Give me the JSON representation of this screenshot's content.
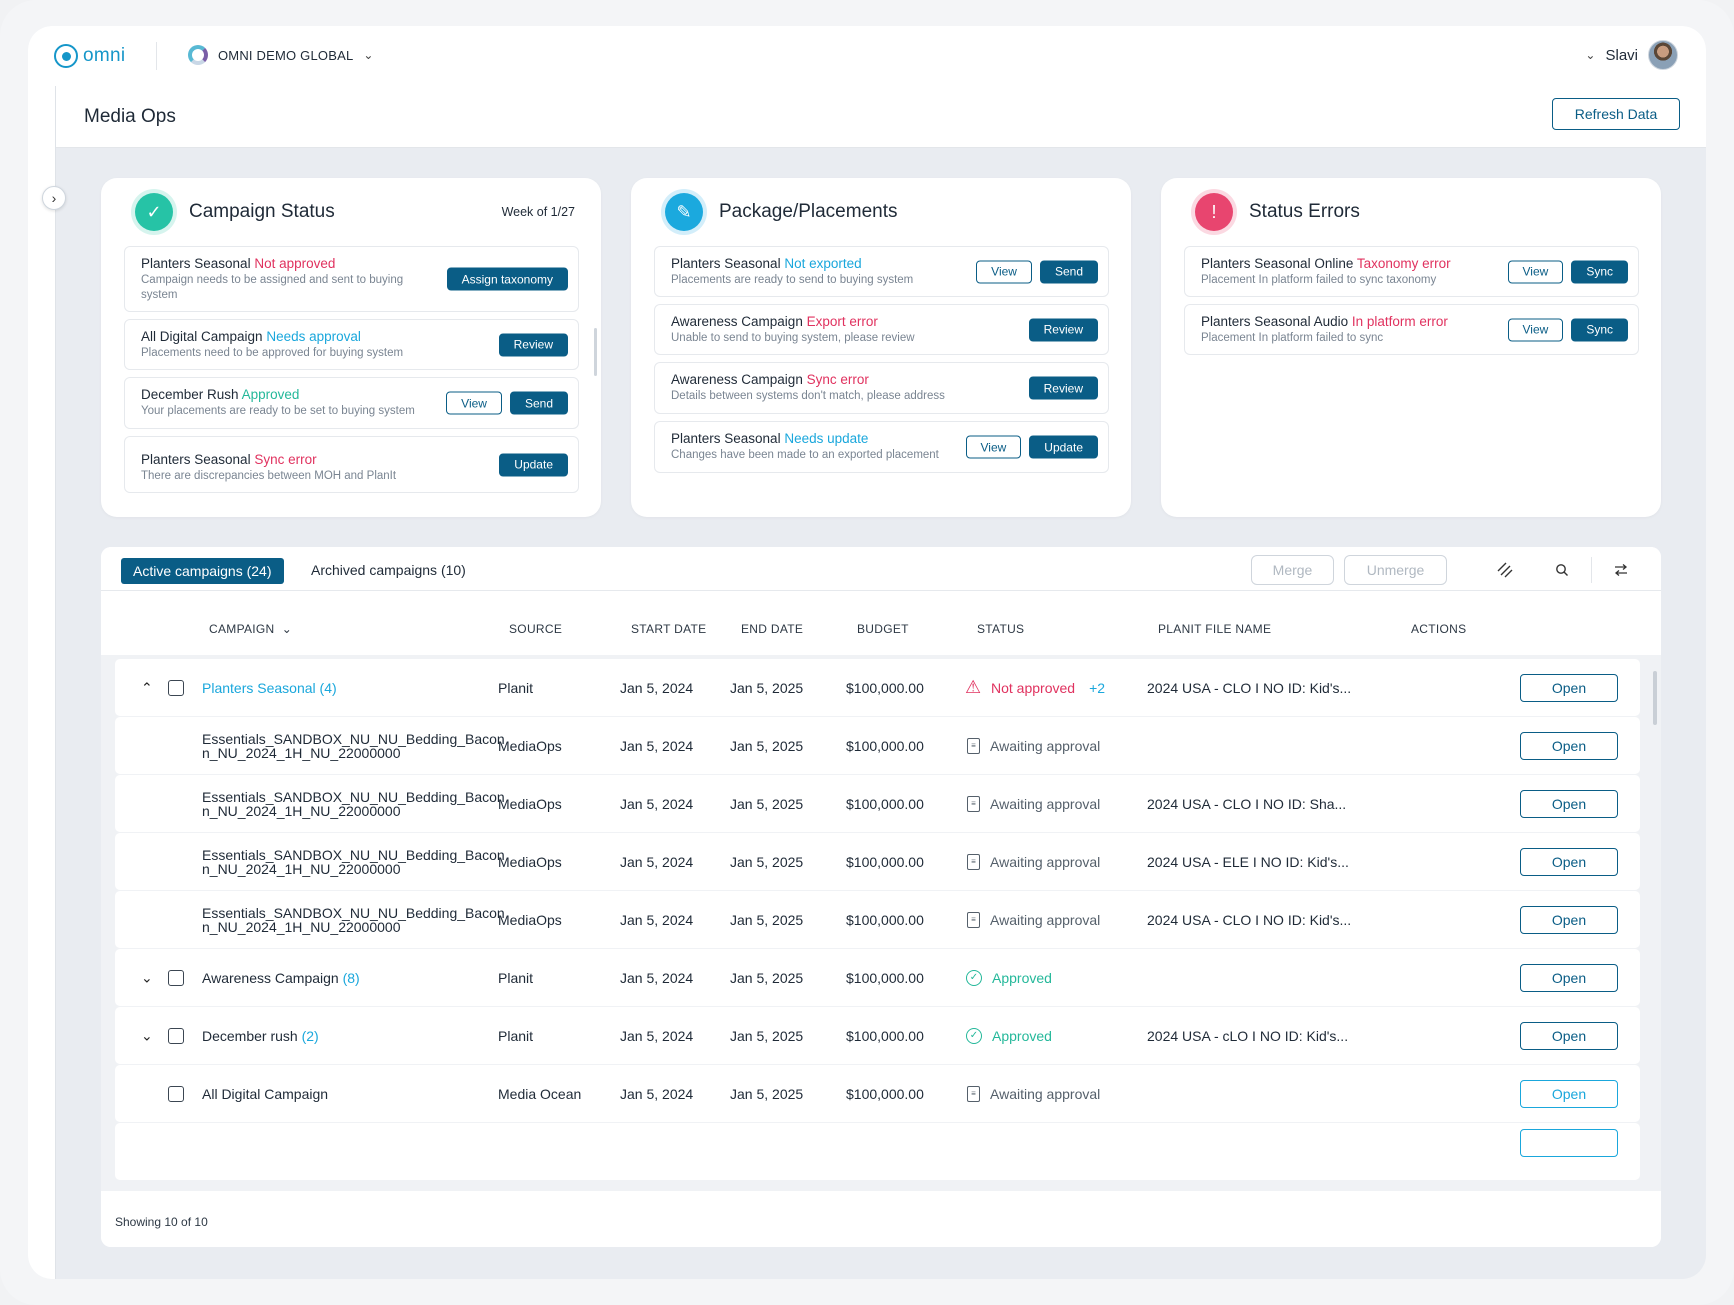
{
  "topbar": {
    "logo": "omni",
    "org": "OMNI DEMO GLOBAL",
    "user": "Slavi"
  },
  "page": {
    "title": "Media Ops",
    "refresh_label": "Refresh Data"
  },
  "campaign_status": {
    "title": "Campaign Status",
    "week": "Week of 1/27",
    "items": [
      {
        "name": "Planters Seasonal",
        "status": "Not approved",
        "desc": "Campaign needs to be assigned and sent to buying system",
        "actions": [
          "Assign taxonomy"
        ]
      },
      {
        "name": "All Digital Campaign",
        "status": "Needs approval",
        "desc": "Placements need to be approved for buying system",
        "actions": [
          "Review"
        ]
      },
      {
        "name": "December Rush",
        "status": "Approved",
        "desc": "Your placements are ready to be set to buying system",
        "actions": [
          "View",
          "Send"
        ]
      },
      {
        "name": "Planters Seasonal",
        "status": "Sync error",
        "desc": "There are discrepancies between MOH and PlanIt",
        "actions": [
          "Update"
        ]
      }
    ]
  },
  "packages": {
    "title": "Package/Placements",
    "items": [
      {
        "name": "Planters Seasonal",
        "status": "Not exported",
        "desc": "Placements are ready to send to buying system",
        "actions": [
          "View",
          "Send"
        ]
      },
      {
        "name": "Awareness Campaign",
        "status": "Export error",
        "desc": "Unable to send to buying system, please review",
        "actions": [
          "Review"
        ]
      },
      {
        "name": "Awareness Campaign",
        "status": "Sync error",
        "desc": "Details between systems don't match, please address",
        "actions": [
          "Review"
        ]
      },
      {
        "name": "Planters Seasonal",
        "status": "Needs update",
        "desc": "Changes have been made to an exported placement",
        "actions": [
          "View",
          "Update"
        ]
      }
    ]
  },
  "status_errors": {
    "title": "Status Errors",
    "items": [
      {
        "name": "Planters Seasonal Online",
        "status": "Taxonomy error",
        "desc": "Placement In platform failed to sync taxonomy",
        "actions": [
          "View",
          "Sync"
        ]
      },
      {
        "name": "Planters Seasonal Audio",
        "status": "In platform error",
        "desc": "Placement In platform failed to sync",
        "actions": [
          "View",
          "Sync"
        ]
      }
    ]
  },
  "table": {
    "tab_active": "Active campaigns (24)",
    "tab_archived": "Archived campaigns (10)",
    "merge_label": "Merge",
    "unmerge_label": "Unmerge",
    "columns": [
      "CAMPAIGN",
      "SOURCE",
      "START DATE",
      "END DATE",
      "BUDGET",
      "STATUS",
      "PLANIT FILE NAME",
      "ACTIONS"
    ],
    "rows": [
      {
        "name": "Planters Seasonal",
        "count": "(4)",
        "source": "Planit",
        "start": "Jan 5, 2024",
        "end": "Jan 5, 2025",
        "budget": "$100,000.00",
        "status": "Not approved",
        "status_extra": "+2",
        "file": "2024 USA - CLO I NO ID: Kid's...",
        "action": "Open"
      },
      {
        "name": "Essentials_SANDBOX_NU_NU_Bedding_Bacon n_NU_2024_1H_NU_22000000",
        "count": "",
        "source": "MediaOps",
        "start": "Jan 5, 2024",
        "end": "Jan 5, 2025",
        "budget": "$100,000.00",
        "status": "Awaiting approval",
        "status_extra": "",
        "file": "",
        "action": "Open"
      },
      {
        "name": "Essentials_SANDBOX_NU_NU_Bedding_Bacon n_NU_2024_1H_NU_22000000",
        "count": "",
        "source": "MediaOps",
        "start": "Jan 5, 2024",
        "end": "Jan 5, 2025",
        "budget": "$100,000.00",
        "status": "Awaiting approval",
        "status_extra": "",
        "file": "2024 USA - CLO I NO ID: Sha...",
        "action": "Open"
      },
      {
        "name": "Essentials_SANDBOX_NU_NU_Bedding_Bacon n_NU_2024_1H_NU_22000000",
        "count": "",
        "source": "MediaOps",
        "start": "Jan 5, 2024",
        "end": "Jan 5, 2025",
        "budget": "$100,000.00",
        "status": "Awaiting approval",
        "status_extra": "",
        "file": "2024 USA - ELE I NO ID: Kid's...",
        "action": "Open"
      },
      {
        "name": "Essentials_SANDBOX_NU_NU_Bedding_Bacon n_NU_2024_1H_NU_22000000",
        "count": "",
        "source": "MediaOps",
        "start": "Jan 5, 2024",
        "end": "Jan 5, 2025",
        "budget": "$100,000.00",
        "status": "Awaiting approval",
        "status_extra": "",
        "file": "2024 USA - CLO I NO ID: Kid's...",
        "action": "Open"
      },
      {
        "name": "Awareness Campaign",
        "count": "(8)",
        "source": "Planit",
        "start": "Jan 5, 2024",
        "end": "Jan 5, 2025",
        "budget": "$100,000.00",
        "status": "Approved",
        "status_extra": "",
        "file": "",
        "action": "Open"
      },
      {
        "name": "December rush",
        "count": "(2)",
        "source": "Planit",
        "start": "Jan 5, 2024",
        "end": "Jan 5, 2025",
        "budget": "$100,000.00",
        "status": "Approved",
        "status_extra": "",
        "file": "2024 USA - cLO I NO ID: Kid's...",
        "action": "Open"
      },
      {
        "name": "All Digital Campaign",
        "count": "",
        "source": "Media Ocean",
        "start": "Jan 5, 2024",
        "end": "Jan 5, 2025",
        "budget": "$100,000.00",
        "status": "Awaiting approval",
        "status_extra": "",
        "file": "",
        "action": "Open"
      }
    ],
    "footer": "Showing 10 of 10"
  }
}
